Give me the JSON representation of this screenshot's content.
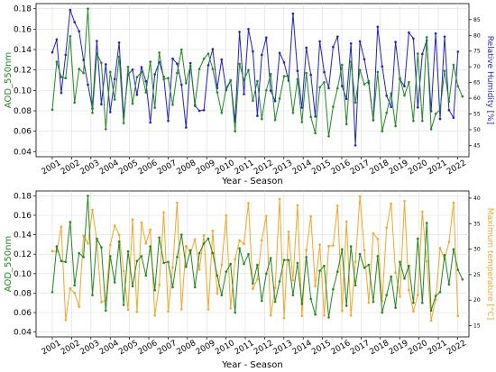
{
  "chart_data": [
    {
      "type": "line",
      "xlabel": "Year - Season",
      "ylabel": "AOD_550nm",
      "y2label": "Relative Humidity [%]",
      "ylim": [
        0.035,
        0.185
      ],
      "yticks": [
        "0.04",
        "0.06",
        "0.08",
        "0.10",
        "0.12",
        "0.14",
        "0.16",
        "0.18"
      ],
      "y2lim": [
        41.4,
        90.1
      ],
      "y2ticks": [
        "45",
        "50",
        "55",
        "60",
        "65",
        "70",
        "75",
        "80",
        "85"
      ],
      "x_tick_labels": [
        "2001",
        "2002",
        "2003",
        "2004",
        "2005",
        "2006",
        "2007",
        "2008",
        "2009",
        "2010",
        "2011",
        "2012",
        "2013",
        "2014",
        "2015",
        "2016",
        "2017",
        "2018",
        "2019",
        "2020",
        "2021",
        "2022"
      ],
      "grid": true,
      "series": [
        {
          "color": "#1f8a1f",
          "axis": "left",
          "values": [
            0.081,
            0.128,
            0.113,
            0.112,
            0.153,
            0.088,
            0.121,
            0.117,
            0.18,
            0.078,
            0.136,
            0.127,
            0.062,
            0.118,
            0.091,
            0.133,
            0.068,
            0.123,
            0.087,
            0.113,
            0.118,
            0.098,
            0.128,
            0.083,
            0.137,
            0.111,
            0.112,
            0.086,
            0.117,
            0.14,
            0.107,
            0.124,
            0.086,
            0.121,
            0.131,
            0.136,
            0.121,
            0.098,
            0.078,
            0.102,
            0.11,
            0.06,
            0.126,
            0.11,
            0.12,
            0.09,
            0.109,
            0.072,
            0.1,
            0.116,
            0.071,
            0.092,
            0.114,
            0.114,
            0.078,
            0.111,
            0.069,
            0.117,
            0.074,
            0.058,
            0.103,
            0.108,
            0.055,
            0.084,
            0.102,
            0.125,
            0.067,
            0.128,
            0.088,
            0.12,
            0.106,
            0.109,
            0.071,
            0.118,
            0.06,
            0.078,
            0.097,
            0.065,
            0.112,
            0.095,
            0.108,
            0.07,
            0.136,
            0.07,
            0.152,
            0.062,
            0.077,
            0.081,
            0.119,
            0.089,
            0.125,
            0.104,
            0.094
          ]
        },
        {
          "color": "#1f1fd6",
          "axis": "right",
          "values": [
            74.6,
            78.7,
            61.7,
            73.8,
            88.1,
            84.2,
            81.3,
            72.2,
            64.3,
            56.7,
            78.2,
            58.1,
            70.8,
            55.6,
            66.1,
            77.7,
            54.2,
            67.5,
            69.1,
            61.1,
            69.9,
            65.4,
            52.3,
            67.6,
            71.5,
            66.8,
            52.8,
            72.6,
            71.0,
            64.3,
            50.7,
            71.2,
            57.6,
            56.0,
            56.2,
            70.5,
            75.6,
            63.2,
            72.3,
            62.6,
            65.6,
            52.5,
            81.1,
            61.3,
            82.0,
            74.9,
            54.4,
            73.8,
            79.3,
            62.4,
            59.1,
            74.4,
            71.4,
            65.6,
            86.9,
            68.7,
            57.0,
            76.1,
            67.4,
            54.2,
            78.1,
            68.3,
            63.2,
            76.3,
            79.6,
            63.9,
            59.8,
            77.4,
            45.0,
            78.1,
            72.4,
            64.8,
            53.0,
            82.7,
            70.1,
            60.8,
            57.2,
            77.9,
            66.0,
            63.8,
            80.9,
            79.0,
            57.1,
            74.1,
            78.4,
            55.9,
            80.6,
            53.4,
            79.6,
            56.2,
            53.8,
            74.8
          ]
        }
      ]
    },
    {
      "type": "line",
      "xlabel": "Year - Season",
      "ylabel": "AOD_550nm",
      "y2label": "Maximum temperature [°C]",
      "ylim": [
        0.035,
        0.185
      ],
      "yticks": [
        "0.04",
        "0.06",
        "0.08",
        "0.10",
        "0.12",
        "0.14",
        "0.16",
        "0.18"
      ],
      "y2lim": [
        12.8,
        41.4
      ],
      "y2ticks": [
        "15",
        "20",
        "25",
        "30",
        "35",
        "40"
      ],
      "x_tick_labels": [
        "2001",
        "2002",
        "2003",
        "2004",
        "2005",
        "2006",
        "2007",
        "2008",
        "2009",
        "2010",
        "2011",
        "2012",
        "2013",
        "2014",
        "2015",
        "2016",
        "2017",
        "2018",
        "2019",
        "2020",
        "2021",
        "2022"
      ],
      "grid": true,
      "series": [
        {
          "color": "#1f8a1f",
          "axis": "left",
          "values": [
            0.081,
            0.128,
            0.113,
            0.112,
            0.153,
            0.088,
            0.121,
            0.117,
            0.18,
            0.078,
            0.136,
            0.127,
            0.062,
            0.118,
            0.091,
            0.133,
            0.068,
            0.123,
            0.087,
            0.113,
            0.118,
            0.098,
            0.128,
            0.083,
            0.137,
            0.111,
            0.112,
            0.086,
            0.117,
            0.14,
            0.107,
            0.124,
            0.086,
            0.121,
            0.131,
            0.136,
            0.121,
            0.098,
            0.078,
            0.102,
            0.11,
            0.06,
            0.126,
            0.11,
            0.12,
            0.09,
            0.109,
            0.072,
            0.1,
            0.116,
            0.071,
            0.092,
            0.114,
            0.114,
            0.078,
            0.111,
            0.069,
            0.117,
            0.074,
            0.058,
            0.103,
            0.108,
            0.055,
            0.084,
            0.102,
            0.125,
            0.067,
            0.128,
            0.088,
            0.12,
            0.106,
            0.109,
            0.071,
            0.118,
            0.06,
            0.078,
            0.097,
            0.065,
            0.112,
            0.095,
            0.108,
            0.07,
            0.136,
            0.07,
            0.152,
            0.062,
            0.077,
            0.081,
            0.119,
            0.089,
            0.125,
            0.104,
            0.094
          ]
        },
        {
          "color": "#f5a623",
          "axis": "right",
          "values": [
            29.6,
            29.5,
            34.4,
            16.1,
            22.3,
            21.4,
            18.7,
            32.6,
            31.1,
            37.7,
            31.6,
            19.6,
            20.0,
            30.8,
            34.6,
            32.8,
            25.7,
            18.1,
            35.8,
            17.7,
            35.2,
            31.1,
            33.8,
            17.0,
            23.0,
            37.2,
            17.8,
            26.4,
            39.1,
            18.2,
            30.6,
            29.2,
            31.9,
            26.0,
            32.7,
            18.2,
            33.6,
            21.3,
            26.9,
            36.6,
            18.4,
            28.0,
            31.7,
            31.0,
            39.0,
            22.2,
            24.1,
            31.7,
            36.5,
            17.0,
            22.4,
            39.8,
            16.5,
            33.4,
            23.9,
            38.6,
            16.9,
            29.8,
            36.4,
            22.7,
            30.9,
            17.0,
            30.6,
            30.7,
            38.5,
            17.9,
            35.4,
            17.0,
            27.5,
            40.3,
            29.8,
            19.5,
            33.1,
            32.0,
            19.8,
            34.2,
            38.9,
            25.4,
            20.7,
            39.4,
            22.0,
            17.8,
            21.0,
            37.3,
            27.6,
            16.0,
            20.1,
            30.2,
            28.0,
            31.4,
            39.1,
            16.9
          ]
        }
      ]
    }
  ]
}
